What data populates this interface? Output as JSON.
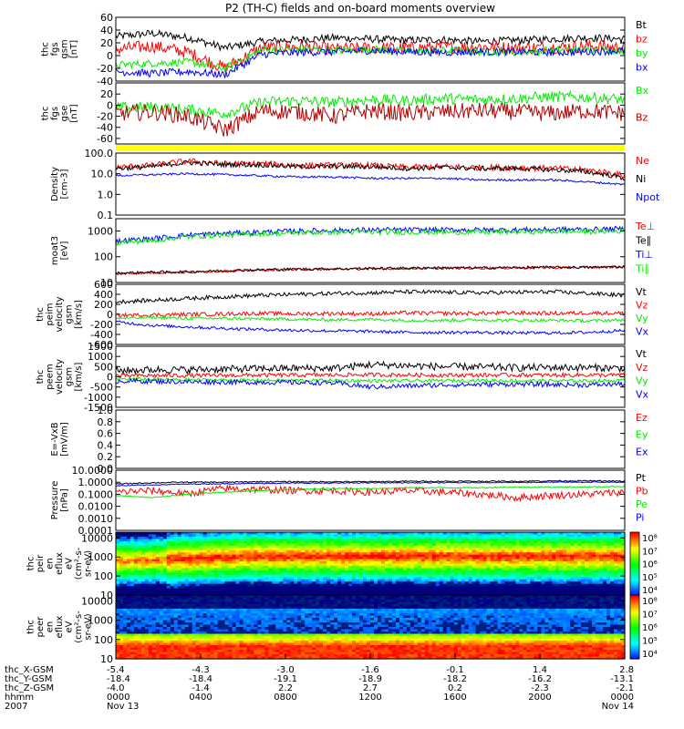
{
  "title": "P2 (TH-C) fields and on-board moments overview",
  "colors": {
    "black": "#000000",
    "red": "#ff0000",
    "darkred": "#b00000",
    "green": "#00ee00",
    "blue": "#0000ff",
    "yellow": "#ffff00"
  },
  "chart_data": [
    {
      "type": "line",
      "ylabel": [
        "thc",
        "fgs",
        "gsm",
        "[nT]"
      ],
      "ylim": [
        -40,
        60
      ],
      "yticks": [
        "60",
        "40",
        "20",
        "0",
        "-20",
        "-40"
      ],
      "tickvals": [
        60,
        40,
        20,
        0,
        -20,
        -40
      ],
      "series": [
        {
          "name": "Bt",
          "color": "#000000",
          "base": [
            30,
            35,
            28,
            12,
            22,
            25,
            28,
            26,
            24,
            25,
            22,
            24,
            26,
            28,
            26
          ],
          "noise": 6
        },
        {
          "name": "bz",
          "color": "#ff0000",
          "base": [
            10,
            15,
            5,
            -20,
            12,
            14,
            10,
            12,
            12,
            13,
            14,
            12,
            13,
            15,
            12
          ],
          "noise": 10
        },
        {
          "name": "by",
          "color": "#00ee00",
          "base": [
            -15,
            -12,
            -10,
            -20,
            8,
            10,
            8,
            10,
            6,
            8,
            6,
            5,
            8,
            10,
            8
          ],
          "noise": 6
        },
        {
          "name": "bx",
          "color": "#0000ff",
          "base": [
            -25,
            -28,
            -25,
            -30,
            2,
            5,
            6,
            8,
            6,
            5,
            6,
            6,
            5,
            6,
            8
          ],
          "noise": 6
        }
      ]
    },
    {
      "type": "line",
      "ylabel": [
        "thc",
        "fgs",
        "gse",
        "[nT]"
      ],
      "ylim": [
        -70,
        40
      ],
      "yticks": [
        "20",
        "0",
        "-20",
        "-40",
        "-60"
      ],
      "tickvals": [
        20,
        0,
        -20,
        -40,
        -60
      ],
      "series": [
        {
          "name": "Bx",
          "color": "#00ee00",
          "base": [
            -5,
            -3,
            -8,
            -15,
            5,
            8,
            5,
            10,
            8,
            12,
            10,
            12,
            15,
            14,
            10
          ],
          "noise": 10
        },
        {
          "name": "Bz",
          "color": "#b00000",
          "base": [
            -15,
            -12,
            -20,
            -45,
            -10,
            -12,
            -20,
            -10,
            -15,
            -12,
            -10,
            -12,
            -15,
            -10,
            -15
          ],
          "noise": 15
        }
      ]
    },
    {
      "type": "line",
      "scale": "log",
      "ylabel": [
        "Density",
        "[cm-3]"
      ],
      "ylim": [
        0.1,
        100
      ],
      "yticks": [
        "100.0",
        "10.0",
        "1.0",
        "0.1"
      ],
      "tickvals": [
        100,
        10,
        1,
        0.1
      ],
      "series": [
        {
          "name": "Ne",
          "color": "#ff0000",
          "base": [
            20,
            25,
            40,
            30,
            30,
            25,
            25,
            25,
            20,
            22,
            20,
            20,
            18,
            15,
            8
          ],
          "noise": 0.15
        },
        {
          "name": "Ni",
          "color": "#000000",
          "base": [
            18,
            22,
            35,
            28,
            27,
            22,
            23,
            22,
            18,
            20,
            18,
            18,
            16,
            12,
            6
          ],
          "noise": 0.12
        },
        {
          "name": "Npot",
          "color": "#0000ff",
          "base": [
            8,
            9,
            10,
            9,
            8,
            7,
            7,
            6,
            6,
            6,
            5,
            5,
            5,
            4,
            3
          ],
          "noise": 0.05
        }
      ]
    },
    {
      "type": "line",
      "scale": "log",
      "ylabel": [
        "moat3",
        "[eV]"
      ],
      "ylim": [
        10,
        3000
      ],
      "yticks": [
        "1000",
        "100",
        "10"
      ],
      "tickvals": [
        1000,
        100,
        10
      ],
      "series": [
        {
          "name": "Te⊥",
          "color": "#ff0000",
          "base": [
            22,
            24,
            25,
            28,
            30,
            32,
            33,
            34,
            35,
            36,
            36,
            37,
            38,
            38,
            40
          ],
          "noise": 0.05
        },
        {
          "name": "Te∥",
          "color": "#000000",
          "base": [
            23,
            25,
            26,
            29,
            31,
            33,
            34,
            35,
            36,
            37,
            37,
            38,
            39,
            39,
            41
          ],
          "noise": 0.05
        },
        {
          "name": "Ti⊥",
          "color": "#0000ff",
          "base": [
            400,
            500,
            700,
            800,
            900,
            1000,
            1050,
            1100,
            1100,
            1100,
            1100,
            1100,
            1150,
            1150,
            1200
          ],
          "noise": 0.1
        },
        {
          "name": "Ti∥",
          "color": "#00ee00",
          "base": [
            350,
            420,
            600,
            700,
            780,
            850,
            900,
            900,
            900,
            900,
            900,
            920,
            950,
            950,
            1000
          ],
          "noise": 0.1
        }
      ]
    },
    {
      "type": "line",
      "ylabel": [
        "thc",
        "peim",
        "velocity",
        "gsm",
        "[km/s]"
      ],
      "ylim": [
        -600,
        600
      ],
      "yticks": [
        "600",
        "400",
        "200",
        "0",
        "-200",
        "-400",
        "-600"
      ],
      "tickvals": [
        600,
        400,
        200,
        0,
        -200,
        -400,
        -600
      ],
      "series": [
        {
          "name": "Vt",
          "color": "#000000",
          "base": [
            250,
            280,
            320,
            350,
            380,
            400,
            420,
            430,
            450,
            440,
            430,
            440,
            450,
            420,
            380
          ],
          "noise": 40
        },
        {
          "name": "Vz",
          "color": "#ff0000",
          "base": [
            -20,
            -10,
            0,
            10,
            20,
            10,
            20,
            10,
            30,
            20,
            20,
            30,
            20,
            30,
            20
          ],
          "noise": 40
        },
        {
          "name": "Vy",
          "color": "#00ee00",
          "base": [
            -80,
            -60,
            -80,
            -80,
            -90,
            -100,
            -110,
            -100,
            -120,
            -120,
            -110,
            -120,
            -120,
            -130,
            -110
          ],
          "noise": 30
        },
        {
          "name": "Vx",
          "color": "#0000ff",
          "base": [
            -150,
            -220,
            -250,
            -280,
            -300,
            -320,
            -330,
            -340,
            -360,
            -360,
            -360,
            -370,
            -370,
            -360,
            -320
          ],
          "noise": 30
        }
      ]
    },
    {
      "type": "line",
      "ylabel": [
        "thc",
        "peem",
        "velocity",
        "gsm",
        "[km/s]"
      ],
      "ylim": [
        -1500,
        1500
      ],
      "yticks": [
        "1500",
        "1000",
        "500",
        "0",
        "-500",
        "-1000",
        "-1500"
      ],
      "tickvals": [
        1500,
        1000,
        500,
        0,
        -500,
        -1000,
        -1500
      ],
      "series": [
        {
          "name": "Vt",
          "color": "#000000",
          "base": [
            300,
            350,
            350,
            380,
            400,
            420,
            420,
            600,
            550,
            500,
            480,
            450,
            460,
            450,
            420
          ],
          "noise": 180
        },
        {
          "name": "Vz",
          "color": "#ff0000",
          "base": [
            50,
            60,
            60,
            70,
            80,
            80,
            90,
            100,
            90,
            80,
            80,
            90,
            80,
            90,
            80
          ],
          "noise": 100
        },
        {
          "name": "Vy",
          "color": "#00ee00",
          "base": [
            -100,
            -120,
            -150,
            -160,
            -170,
            -180,
            -180,
            -200,
            -200,
            -190,
            -180,
            -190,
            -200,
            -200,
            -180
          ],
          "noise": 80
        },
        {
          "name": "Vx",
          "color": "#0000ff",
          "base": [
            -200,
            -220,
            -250,
            -260,
            -270,
            -280,
            -300,
            -500,
            -450,
            -400,
            -380,
            -360,
            -380,
            -400,
            -350
          ],
          "noise": 120
        }
      ]
    },
    {
      "type": "line",
      "ylabel": [
        "E=-VxB",
        "[mV/m]"
      ],
      "ylim": [
        0,
        1
      ],
      "yticks": [
        "1.0",
        "0.8",
        "0.6",
        "0.4",
        "0.2",
        "0.0"
      ],
      "tickvals": [
        1,
        0.8,
        0.6,
        0.4,
        0.2,
        0
      ],
      "series": [
        {
          "name": "Ez",
          "color": "#ff0000",
          "base": [],
          "noise": 0
        },
        {
          "name": "Ey",
          "color": "#00ee00",
          "base": [],
          "noise": 0
        },
        {
          "name": "Ex",
          "color": "#0000ff",
          "base": [],
          "noise": 0
        }
      ]
    },
    {
      "type": "line",
      "scale": "log",
      "ylabel": [
        "Pressure",
        "[nPa]"
      ],
      "ylim": [
        0.0001,
        10
      ],
      "yticks": [
        "10.0000",
        "1.0000",
        "0.1000",
        "0.0100",
        "0.0010",
        "0.0001"
      ],
      "tickvals": [
        10,
        1,
        0.1,
        0.01,
        0.001,
        0.0001
      ],
      "series": [
        {
          "name": "Pt",
          "color": "#000000",
          "base": [
            0.7,
            0.9,
            1.0,
            1.0,
            1.1,
            1.1,
            1.1,
            1.1,
            1.2,
            1.2,
            1.2,
            1.2,
            1.3,
            1.3,
            1.2
          ],
          "noise": 0.05
        },
        {
          "name": "Pb",
          "color": "#ff0000",
          "base": [
            0.15,
            0.2,
            0.1,
            0.3,
            0.25,
            0.2,
            0.2,
            0.15,
            0.2,
            0.15,
            0.1,
            0.05,
            0.08,
            0.1,
            0.15
          ],
          "noise": 0.3
        },
        {
          "name": "Pe",
          "color": "#00ee00",
          "base": [
            0.08,
            0.05,
            0.1,
            0.15,
            0.2,
            0.25,
            0.3,
            0.3,
            0.35,
            0.35,
            0.35,
            0.4,
            0.4,
            0.4,
            0.45
          ],
          "noise": 0.05
        },
        {
          "name": "Pi",
          "color": "#0000ff",
          "base": [
            0.5,
            0.6,
            0.7,
            0.75,
            0.8,
            0.85,
            0.85,
            0.9,
            0.9,
            0.9,
            0.95,
            0.95,
            1.0,
            1.0,
            1.0
          ],
          "noise": 0.04
        }
      ]
    },
    {
      "type": "heatmap",
      "ylabel": [
        "thc",
        "peir",
        "en",
        "eflux",
        "eV",
        "(cm²-s-",
        "sr-eV)"
      ],
      "ylim": [
        10,
        20000
      ],
      "yticks": [
        "10000",
        "1000",
        "100",
        "10"
      ],
      "tickvals": [
        10000,
        1000,
        100,
        10
      ],
      "colorbar": {
        "ticks": [
          "10⁸",
          "10⁷",
          "10⁶",
          "10⁵",
          "10⁴"
        ],
        "tickvals": [
          8,
          7,
          6,
          5,
          4
        ]
      }
    },
    {
      "type": "heatmap",
      "ylabel": [
        "thc",
        "peer",
        "en",
        "eflux",
        "eV",
        "(cm²-s-",
        "sr-eV)"
      ],
      "ylim": [
        10,
        20000
      ],
      "yticks": [
        "10000",
        "1000",
        "100",
        "10"
      ],
      "tickvals": [
        10000,
        1000,
        100,
        10
      ],
      "colorbar": {
        "ticks": [
          "10⁸",
          "10⁷",
          "10⁶",
          "10⁵",
          "10⁴"
        ],
        "tickvals": [
          8,
          7,
          6,
          5,
          4
        ]
      }
    }
  ],
  "xaxis": {
    "row_labels": [
      "thc_X-GSM",
      "thc_Y-GSM",
      "thc_Z-GSM",
      "hhmm",
      "2007"
    ],
    "ticks": [
      {
        "x": "-5.4",
        "y": "-18.4",
        "z": "-4.0",
        "hhmm": "0000",
        "date": "Nov 13"
      },
      {
        "x": "-4.3",
        "y": "-18.4",
        "z": "-1.4",
        "hhmm": "0400",
        "date": ""
      },
      {
        "x": "-3.0",
        "y": "-19.1",
        "z": "2.2",
        "hhmm": "0800",
        "date": ""
      },
      {
        "x": "-1.6",
        "y": "-18.9",
        "z": "2.7",
        "hhmm": "1200",
        "date": ""
      },
      {
        "x": "-0.1",
        "y": "-18.2",
        "z": "0.2",
        "hhmm": "1600",
        "date": ""
      },
      {
        "x": "1.4",
        "y": "-16.2",
        "z": "-2.3",
        "hhmm": "2000",
        "date": ""
      },
      {
        "x": "2.8",
        "y": "-13.1",
        "z": "-2.1",
        "hhmm": "0000",
        "date": "Nov 14"
      }
    ]
  }
}
